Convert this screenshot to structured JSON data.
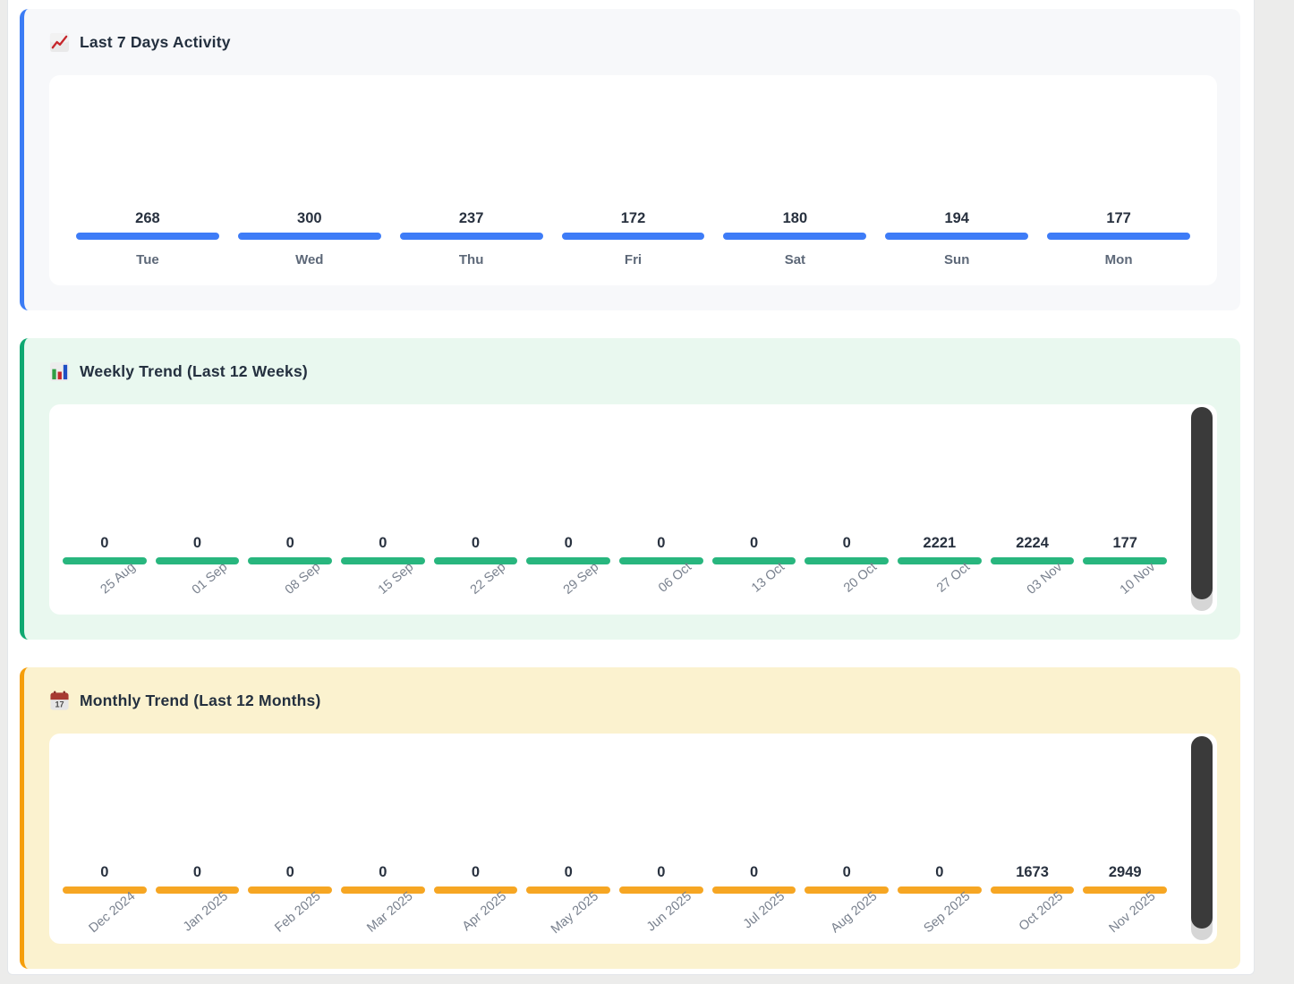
{
  "page": {
    "outer_bg": "#ececeb",
    "container_bg": "#ffffff",
    "container_border": "#e3e6ea"
  },
  "chart_data": [
    {
      "type": "bar",
      "title": "Last 7 Days Activity",
      "icon": "chart-increasing-icon",
      "accent": "#3b7cf5",
      "card_bg": "#f7f8fa",
      "bar_color": "#3e7cf7",
      "categories": [
        "Tue",
        "Wed",
        "Thu",
        "Fri",
        "Sat",
        "Sun",
        "Mon"
      ],
      "values": [
        268,
        300,
        237,
        172,
        180,
        194,
        177
      ],
      "rotated_labels": false,
      "scrollbar": false,
      "legend": "none",
      "grid": false
    },
    {
      "type": "bar",
      "title": "Weekly Trend (Last 12 Weeks)",
      "icon": "bar-chart-icon",
      "accent": "#0fa871",
      "card_bg": "#e9f8ef",
      "bar_color": "#28b67e",
      "categories": [
        "25 Aug",
        "01 Sep",
        "08 Sep",
        "15 Sep",
        "22 Sep",
        "29 Sep",
        "06 Oct",
        "13 Oct",
        "20 Oct",
        "27 Oct",
        "03 Nov",
        "10 Nov"
      ],
      "values": [
        0,
        0,
        0,
        0,
        0,
        0,
        0,
        0,
        0,
        2221,
        2224,
        177
      ],
      "rotated_labels": true,
      "scrollbar": true,
      "legend": "none",
      "grid": false
    },
    {
      "type": "bar",
      "title": "Monthly Trend (Last 12 Months)",
      "icon": "calendar-icon",
      "accent": "#f59e0b",
      "card_bg": "#fbf2cf",
      "bar_color": "#f6a623",
      "categories": [
        "Dec 2024",
        "Jan 2025",
        "Feb 2025",
        "Mar 2025",
        "Apr 2025",
        "May 2025",
        "Jun 2025",
        "Jul 2025",
        "Aug 2025",
        "Sep 2025",
        "Oct 2025",
        "Nov 2025"
      ],
      "values": [
        0,
        0,
        0,
        0,
        0,
        0,
        0,
        0,
        0,
        0,
        1673,
        2949
      ],
      "rotated_labels": true,
      "scrollbar": true,
      "legend": "none",
      "grid": false
    }
  ]
}
